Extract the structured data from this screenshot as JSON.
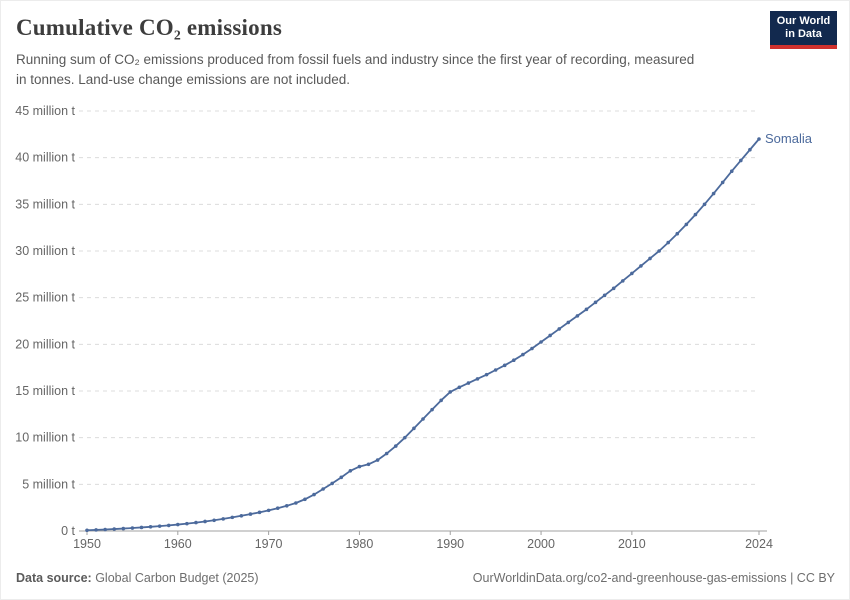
{
  "header": {
    "title": "Cumulative CO₂ emissions",
    "subtitle": "Running sum of CO₂ emissions produced from fossil fuels and industry since the first year of recording, measured in tonnes. Land-use change emissions are not included.",
    "logo": {
      "line1": "Our World",
      "line2": "in Data"
    }
  },
  "footer": {
    "source_label": "Data source:",
    "source_value": " Global Carbon Budget (2025)",
    "rights": "OurWorldinData.org/co2-and-greenhouse-gas-emissions | CC BY"
  },
  "colors": {
    "line": "#4c6a9c",
    "entity_label": "#4c6a9c",
    "gridline": "#dcdcdc",
    "axis_line": "#a1a1a1",
    "tick_label": "#666666",
    "logo_navy": "#12294e",
    "logo_red": "#d0312d"
  },
  "chart_data": {
    "type": "line",
    "title": "Cumulative CO₂ emissions",
    "entity_label": "Somalia",
    "unit": "t",
    "ylabel": "",
    "xlabel": "",
    "ylim": [
      0,
      45
    ],
    "xlim": [
      1950,
      2024
    ],
    "grid": true,
    "legend_position": "end-of-line",
    "y_ticks": [
      0,
      5,
      10,
      15,
      20,
      25,
      30,
      35,
      40,
      45
    ],
    "y_tick_suffix": " million t",
    "y_zero_label": "0 t",
    "x_ticks": [
      1950,
      1960,
      1970,
      1980,
      1990,
      2000,
      2010,
      2024
    ],
    "x_years": {
      "start": 1950,
      "end": 2024,
      "step": 1
    },
    "series": [
      {
        "name": "Somalia",
        "values": [
          0.08,
          0.12,
          0.16,
          0.21,
          0.26,
          0.32,
          0.38,
          0.45,
          0.52,
          0.6,
          0.69,
          0.79,
          0.9,
          1.02,
          1.15,
          1.3,
          1.46,
          1.63,
          1.81,
          2.0,
          2.21,
          2.44,
          2.7,
          3.0,
          3.4,
          3.9,
          4.5,
          5.1,
          5.75,
          6.45,
          6.9,
          7.15,
          7.6,
          8.3,
          9.1,
          10.0,
          11.0,
          12.0,
          13.0,
          14.0,
          14.9,
          15.4,
          15.85,
          16.3,
          16.75,
          17.25,
          17.75,
          18.3,
          18.9,
          19.55,
          20.25,
          20.95,
          21.65,
          22.35,
          23.05,
          23.75,
          24.5,
          25.25,
          26.0,
          26.8,
          27.6,
          28.4,
          29.2,
          30.0,
          30.9,
          31.85,
          32.85,
          33.9,
          35.0,
          36.15,
          37.35,
          38.55,
          39.7,
          40.85,
          42.0
        ]
      }
    ]
  }
}
